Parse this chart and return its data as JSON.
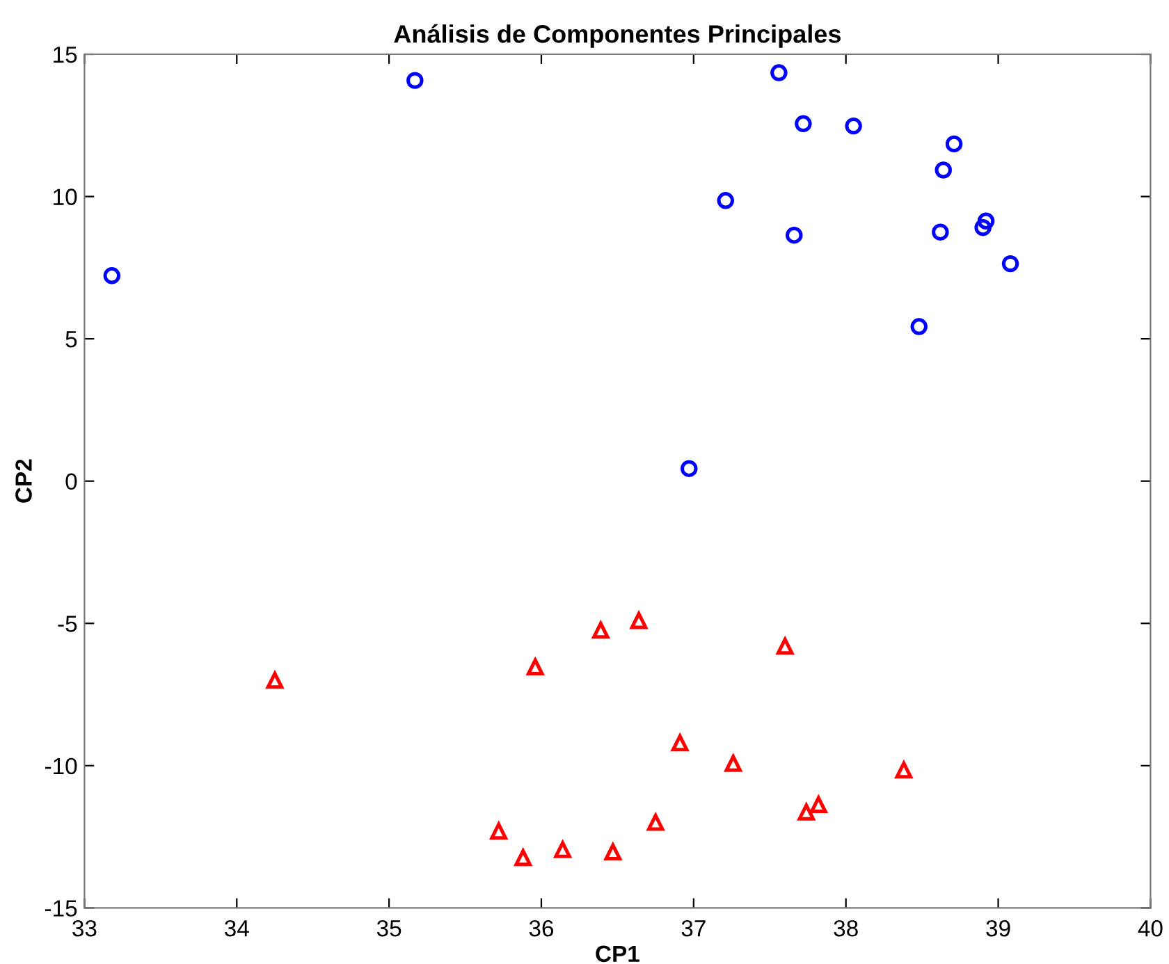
{
  "chart_data": {
    "type": "scatter",
    "title": "Análisis de Componentes Principales",
    "xlabel": "CP1",
    "ylabel": "CP2",
    "xlim": [
      33,
      40
    ],
    "xticks": [
      33,
      34,
      35,
      36,
      37,
      38,
      39,
      40
    ],
    "ylim": [
      -15,
      15
    ],
    "yticks": [
      -15,
      -10,
      -5,
      0,
      5,
      10,
      15
    ],
    "grid": false,
    "series": [
      {
        "color": "#0000ff",
        "marker": "circle",
        "x": [
          33.18,
          35.17,
          37.56,
          37.72,
          38.05,
          38.71,
          38.64,
          37.21,
          37.66,
          38.62,
          38.92,
          38.9,
          39.08,
          38.48,
          36.97
        ],
        "values": [
          7.22,
          14.08,
          14.35,
          12.56,
          12.48,
          11.85,
          10.93,
          9.86,
          8.64,
          8.75,
          9.14,
          8.91,
          7.64,
          5.43,
          0.44
        ]
      },
      {
        "color": "#ff0000",
        "marker": "triangle",
        "x": [
          34.25,
          35.96,
          35.72,
          35.88,
          36.14,
          36.39,
          36.64,
          37.6,
          36.91,
          37.26,
          38.38,
          36.75,
          36.47,
          37.74,
          37.82
        ],
        "values": [
          -7.0,
          -6.53,
          -12.3,
          -13.23,
          -12.95,
          -5.24,
          -4.9,
          -5.8,
          -9.2,
          -9.92,
          -10.15,
          -11.99,
          -13.03,
          -11.63,
          -11.37
        ]
      }
    ]
  }
}
